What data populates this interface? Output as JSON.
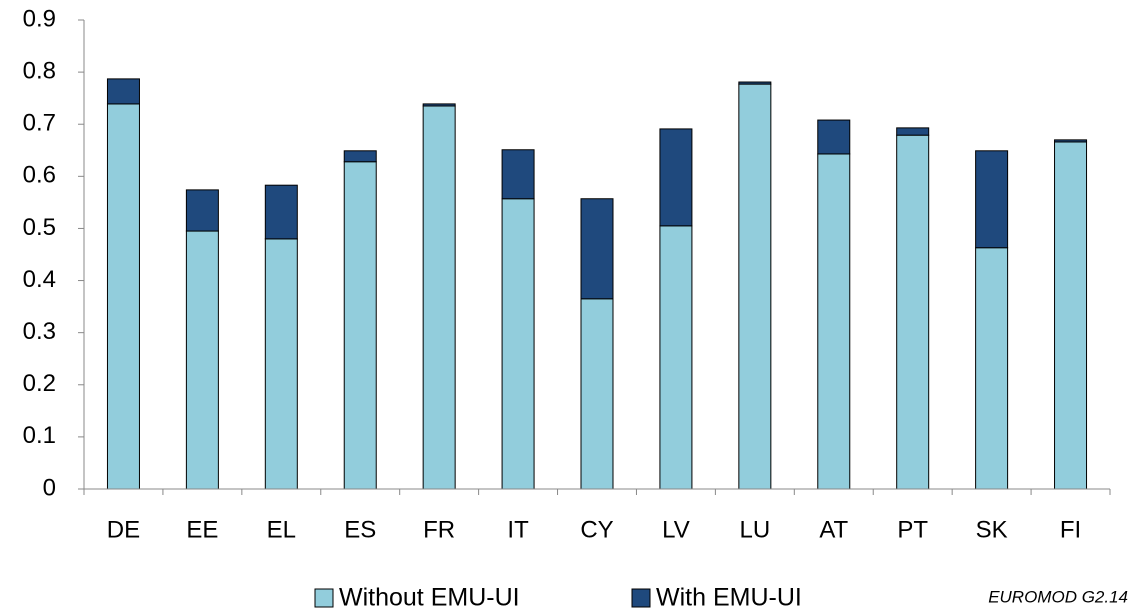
{
  "chart_data": {
    "type": "stacked_bar",
    "categories": [
      "DE",
      "EE",
      "EL",
      "ES",
      "FR",
      "IT",
      "CY",
      "LV",
      "LU",
      "AT",
      "PT",
      "SK",
      "FI"
    ],
    "series": [
      {
        "name": "Without EMU-UI",
        "color": "#92cddc",
        "values": [
          0.739,
          0.495,
          0.48,
          0.628,
          0.735,
          0.557,
          0.365,
          0.505,
          0.777,
          0.643,
          0.679,
          0.463,
          0.666
        ]
      },
      {
        "name": "With EMU-UI",
        "color": "#1f497d",
        "values": [
          0.048,
          0.079,
          0.103,
          0.021,
          0.004,
          0.094,
          0.192,
          0.186,
          0.004,
          0.065,
          0.014,
          0.186,
          0.004
        ]
      }
    ],
    "ylim": [
      0,
      0.9
    ],
    "yticks": [
      0,
      0.1,
      0.2,
      0.3,
      0.4,
      0.5,
      0.6,
      0.7,
      0.8,
      0.9
    ],
    "grid": false,
    "legend": "bottom",
    "annotation": "EUROMOD G2.14"
  }
}
